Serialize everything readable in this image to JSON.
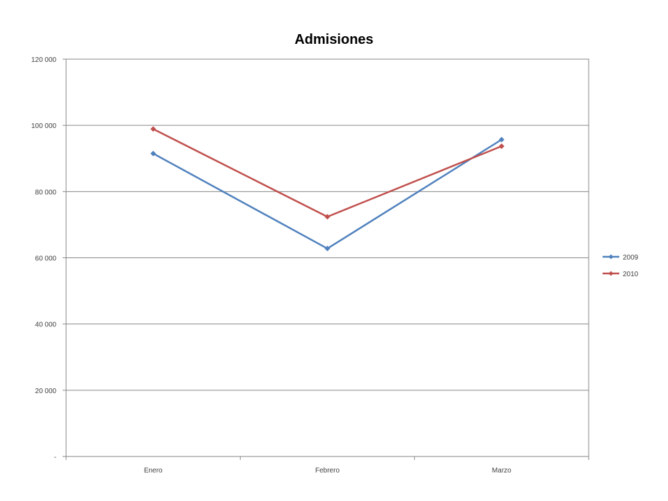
{
  "chart_data": {
    "type": "line",
    "title": "Admisiones",
    "xlabel": "",
    "ylabel": "",
    "categories": [
      "Enero",
      "Febrero",
      "Marzo"
    ],
    "ylim": [
      0,
      120000
    ],
    "yticks": [
      0,
      20000,
      40000,
      60000,
      80000,
      100000,
      120000
    ],
    "ytick_labels": [
      "-",
      "20 000",
      "40 000",
      "60 000",
      "80 000",
      "100 000",
      "120 000"
    ],
    "grid": true,
    "legend_position": "right",
    "series": [
      {
        "name": "2009",
        "color": "#4F81BD",
        "values": [
          91500,
          62800,
          95700
        ]
      },
      {
        "name": "2010",
        "color": "#C0504D",
        "values": [
          98900,
          72400,
          93700
        ]
      }
    ]
  }
}
